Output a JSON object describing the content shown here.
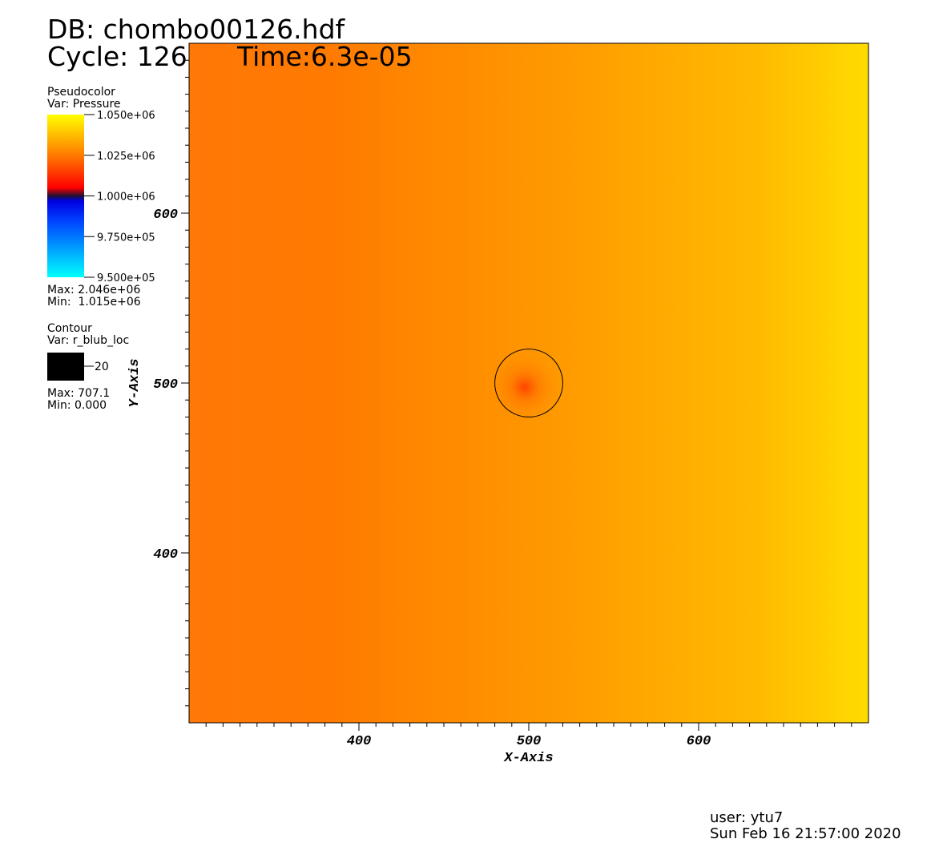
{
  "chart_data": {
    "type": "pseudocolor",
    "title": "DB: chombo00126.hdf",
    "cycle": "Cycle: 126",
    "time": "Time:6.3e-05",
    "x_label": "X-Axis",
    "y_label": "Y-Axis",
    "xlim": [
      300,
      700
    ],
    "ylim": [
      300,
      700
    ],
    "xticks": [
      400,
      500,
      600
    ],
    "yticks": [
      400,
      500,
      600
    ],
    "legend": {
      "plot": "Pseudocolor",
      "var": "Var: Pressure",
      "colorbar_lim": [
        950000,
        1050000
      ],
      "ticks": [
        {
          "value": 1050000,
          "label": "1.050e+06"
        },
        {
          "value": 1025000,
          "label": "1.025e+06"
        },
        {
          "value": 1000000,
          "label": "1.000e+06"
        },
        {
          "value": 975000,
          "label": "9.750e+05"
        },
        {
          "value": 950000,
          "label": "9.500e+05"
        }
      ],
      "max": "Max: 2.046e+06",
      "min": "Min:  1.015e+06"
    },
    "contour": {
      "plot": "Contour",
      "var": "Var: r_blub_loc",
      "levels": [
        20
      ],
      "color": "#000000",
      "max": "Max: 707.1",
      "min": "Min: 0.000"
    },
    "user": "user: ytu7",
    "date": "Sun Feb 16 21:57:00 2020"
  }
}
